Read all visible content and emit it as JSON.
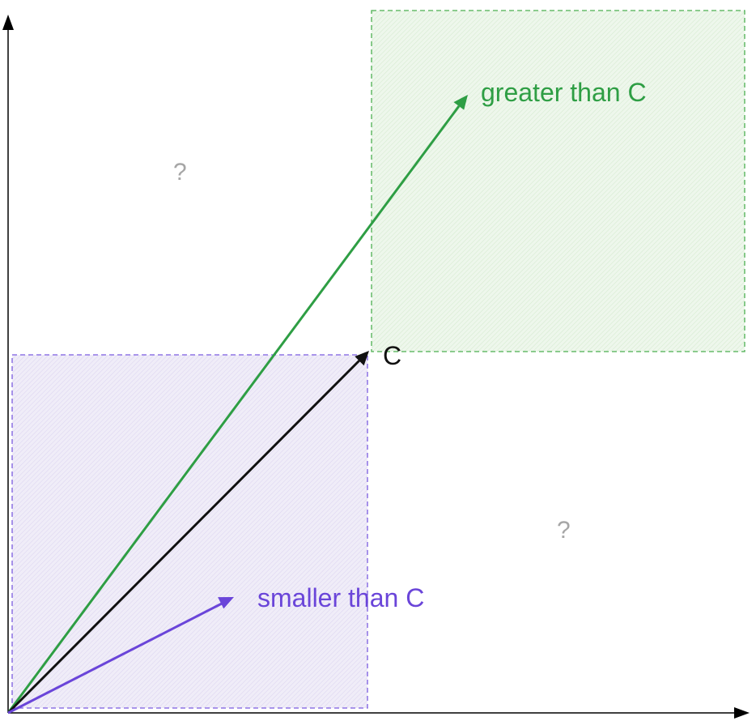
{
  "labels": {
    "greater": "greater than C",
    "point": "C",
    "smaller": "smaller than C",
    "unknown_top_left": "?",
    "unknown_bottom_right": "?"
  },
  "colors": {
    "axis": "#000000",
    "green": "#2e9e44",
    "green_fill": "#e6f3e3",
    "purple": "#6a45d9",
    "purple_fill": "#e9e5f6",
    "black_arrow": "#111111",
    "question": "#a6a6a6"
  },
  "icons": {
    "x_axis_arrow": "arrowhead-right-icon",
    "y_axis_arrow": "arrowhead-up-icon"
  }
}
